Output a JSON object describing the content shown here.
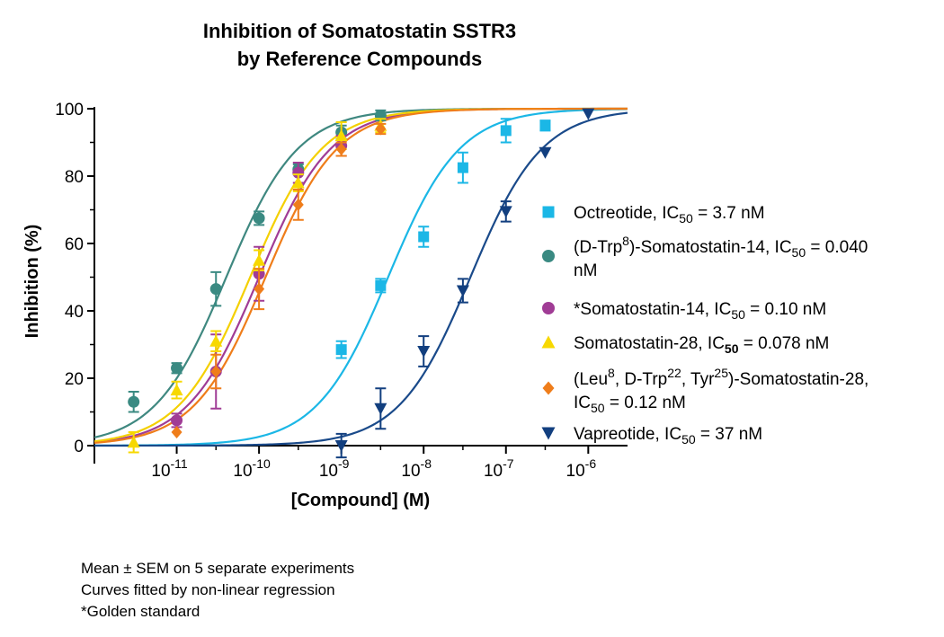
{
  "chart_data": {
    "type": "scatter",
    "title": "Inhibition of Somatostatin SSTR3",
    "subtitle": "by Reference Compounds",
    "xlabel": "[Compound] (M)",
    "ylabel": "Inhibition (%)",
    "x_scale": "log",
    "xlim": [
      1e-12,
      3e-06
    ],
    "ylim": [
      0,
      100
    ],
    "y_ticks": [
      "0",
      "20",
      "40",
      "60",
      "80",
      "100"
    ],
    "x_ticks": [
      {
        "base": "10",
        "exp": "-11"
      },
      {
        "base": "10",
        "exp": "-10"
      },
      {
        "base": "10",
        "exp": "-9"
      },
      {
        "base": "10",
        "exp": "-8"
      },
      {
        "base": "10",
        "exp": "-7"
      },
      {
        "base": "10",
        "exp": "-6"
      }
    ],
    "legend_position": "right",
    "series": [
      {
        "name": "Octreotide, IC50 = 3.7 nM",
        "legend": [
          {
            "t": "Octreotide, IC"
          },
          {
            "t": "50",
            "sub": true
          },
          {
            "t": " = 3.7 nM"
          }
        ],
        "marker": "square",
        "color": "#1bb7e6",
        "line_color": "#1bb7e6",
        "ic50": 3.7e-09,
        "top": 100,
        "bottom": 0,
        "x": [
          1e-09,
          3e-09,
          1e-08,
          3e-08,
          1e-07,
          3e-07
        ],
        "y": [
          28.5,
          47.5,
          62,
          82.5,
          93.5,
          95
        ],
        "err": [
          2.5,
          2,
          3,
          4.5,
          3.5,
          1.5
        ]
      },
      {
        "name": "(D-Trp8)-Somatostatin-14, IC50 = 0.040 nM",
        "legend": [
          {
            "t": "(D-Trp"
          },
          {
            "t": "8",
            "sup": true
          },
          {
            "t": ")-Somatostatin-14, IC"
          },
          {
            "t": "50",
            "sub": true
          },
          {
            "t": " = 0.040"
          }
        ],
        "legend2": [
          {
            "t": "nM"
          }
        ],
        "marker": "circle",
        "color": "#3a8a82",
        "line_color": "#3f8880",
        "ic50": 4e-11,
        "top": 100,
        "bottom": 0,
        "x": [
          3e-12,
          1e-11,
          3e-11,
          1e-10,
          3e-10,
          1e-09,
          3e-09
        ],
        "y": [
          13,
          23,
          46.5,
          67.5,
          82,
          93,
          98
        ],
        "err": [
          3,
          1.5,
          5,
          2,
          1.5,
          2,
          1.5
        ]
      },
      {
        "name": "*Somatostatin-14, IC50 = 0.10 nM",
        "legend": [
          {
            "t": "*Somatostatin-14, IC"
          },
          {
            "t": "50",
            "sub": true
          },
          {
            "t": " = 0.10 nM"
          }
        ],
        "marker": "circle",
        "color": "#a03c95",
        "line_color": "#a03c95",
        "ic50": 1e-10,
        "top": 100,
        "bottom": 0,
        "x": [
          1e-11,
          3e-11,
          1e-10,
          3e-10,
          1e-09
        ],
        "y": [
          7.5,
          22,
          51,
          81,
          89
        ],
        "err": [
          2,
          11,
          8,
          3,
          3
        ]
      },
      {
        "name": "Somatostatin-28, IC50 = 0.078 nM",
        "legend": [
          {
            "t": "Somatostatin-28, IC"
          },
          {
            "t": "50",
            "sub": true,
            "bold": true
          },
          {
            "t": " = 0.078 nM"
          }
        ],
        "marker": "triangle-up",
        "color": "#f7d800",
        "line_color": "#f4d000",
        "ic50": 7.8e-11,
        "top": 100,
        "bottom": 0,
        "x": [
          3e-12,
          1e-11,
          3e-11,
          1e-10,
          3e-10,
          1e-09,
          3e-09
        ],
        "y": [
          1,
          16.5,
          31,
          55,
          78,
          92,
          95
        ],
        "err": [
          3,
          2.5,
          3,
          3,
          2.5,
          4,
          2
        ]
      },
      {
        "name": "(Leu8, D-Trp22, Tyr25)-Somatostatin-28, IC50 = 0.12 nM",
        "legend": [
          {
            "t": "(Leu"
          },
          {
            "t": "8",
            "sup": true
          },
          {
            "t": ", D-Trp"
          },
          {
            "t": "22",
            "sup": true
          },
          {
            "t": ", Tyr"
          },
          {
            "t": "25",
            "sup": true
          },
          {
            "t": ")-Somatostatin-28,"
          }
        ],
        "legend2": [
          {
            "t": "IC"
          },
          {
            "t": "50",
            "sub": true
          },
          {
            "t": " = 0.12 nM"
          }
        ],
        "marker": "diamond",
        "color": "#ef7d1a",
        "line_color": "#ef7d1a",
        "ic50": 1.2e-10,
        "top": 100,
        "bottom": 0,
        "x": [
          1e-11,
          3e-11,
          1e-10,
          3e-10,
          1e-09,
          3e-09
        ],
        "y": [
          4,
          22,
          46.5,
          71.5,
          88,
          94
        ],
        "err": [
          0,
          5,
          6,
          4.5,
          2,
          1.5
        ]
      },
      {
        "name": "Vapreotide, IC50 = 37 nM",
        "legend": [
          {
            "t": "Vapreotide, IC"
          },
          {
            "t": "50",
            "sub": true
          },
          {
            "t": " = 37 nM"
          }
        ],
        "marker": "triangle-down",
        "color": "#123f7f",
        "line_color": "#1a4a8a",
        "ic50": 3.7e-08,
        "top": 100,
        "bottom": 0,
        "x": [
          1e-09,
          3e-09,
          1e-08,
          3e-08,
          1e-07,
          3e-07,
          1e-06
        ],
        "y": [
          0,
          11,
          28,
          46,
          69.5,
          87,
          98.5
        ],
        "err": [
          3.5,
          6,
          4.5,
          3.5,
          3,
          0,
          0
        ]
      }
    ]
  },
  "footnotes": [
    "Mean ± SEM on 5 separate experiments",
    "Curves fitted by non-linear regression",
    "*Golden standard"
  ]
}
